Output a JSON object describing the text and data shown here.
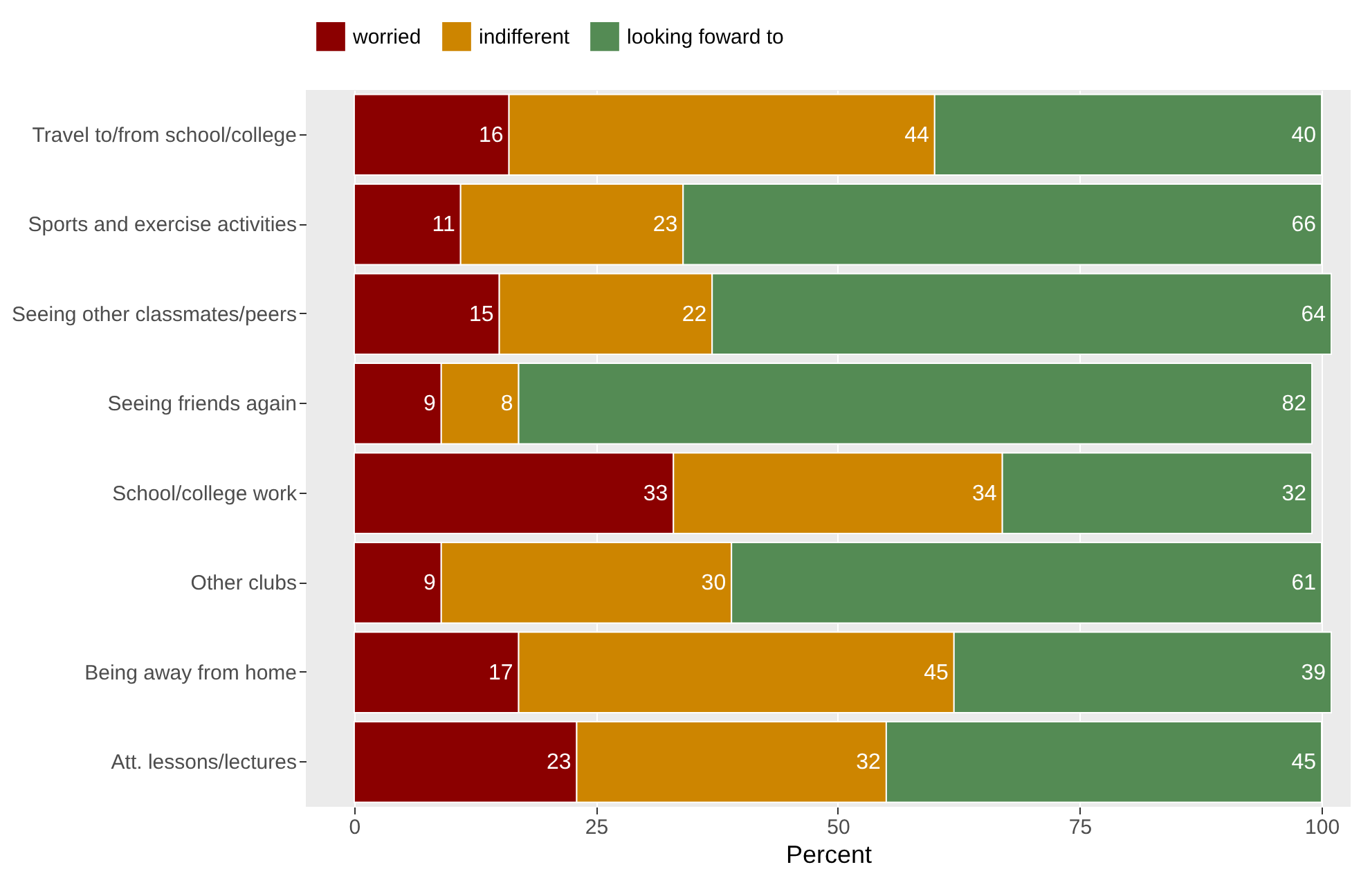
{
  "chart_data": {
    "type": "bar",
    "orientation": "horizontal",
    "stacked": true,
    "categories": [
      "Travel to/from school/college",
      "Sports and exercise activities",
      "Seeing other classmates/peers",
      "Seeing friends again",
      "School/college work",
      "Other clubs",
      "Being away from home",
      "Att. lessons/lectures"
    ],
    "series": [
      {
        "name": "worried",
        "color": "#8b0000",
        "values": [
          16,
          11,
          15,
          9,
          33,
          9,
          17,
          23
        ]
      },
      {
        "name": "indifferent",
        "color": "#cd8500",
        "values": [
          44,
          23,
          22,
          8,
          34,
          30,
          45,
          32
        ]
      },
      {
        "name": "looking foward to",
        "color": "#548b54",
        "values": [
          40,
          66,
          64,
          82,
          32,
          61,
          39,
          45
        ]
      }
    ],
    "xlabel": "Percent",
    "xlim": [
      -5,
      103
    ],
    "xticks": [
      0,
      25,
      50,
      75,
      100
    ],
    "grid": "x",
    "legend": "top",
    "data_labels": true
  }
}
